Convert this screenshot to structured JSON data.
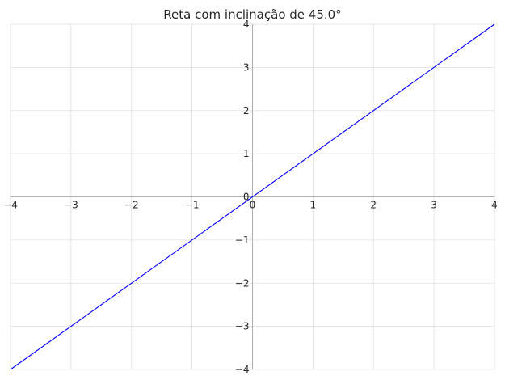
{
  "chart_data": {
    "type": "line",
    "title": "Reta com inclinação de 45.0°",
    "xlabel": "",
    "ylabel": "",
    "xlim": [
      -4,
      4
    ],
    "ylim": [
      -4,
      4
    ],
    "grid": true,
    "axes_through_origin": true,
    "x_ticks": [
      "−4",
      "−3",
      "−2",
      "−1",
      "0",
      "1",
      "2",
      "3",
      "4"
    ],
    "y_ticks": [
      "−4",
      "−3",
      "−2",
      "−1",
      "0",
      "1",
      "2",
      "3",
      "4"
    ],
    "series": [
      {
        "x": [
          -4,
          4
        ],
        "y": [
          -4,
          4
        ],
        "color": "#0000ff"
      }
    ]
  }
}
